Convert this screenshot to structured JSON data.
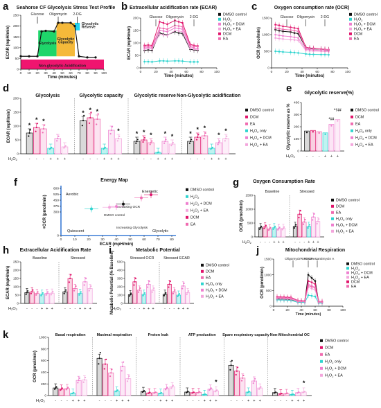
{
  "colors": {
    "dmso": "#111111",
    "dcm": "#e0156b",
    "ea": "#f06bb0",
    "h2o2": "#2ed4cf",
    "h2o2_dcm": "#ee7fcf",
    "h2o2_ea": "#f3a6dc",
    "glycolysis_box": "#1ed66a",
    "capacity_box": "#f5b93a",
    "reserve_box": "#21d4f0",
    "nonglyc_box": "#f0156f"
  },
  "treatments": [
    "DMSO control",
    "DCM",
    "EA",
    "H2O2 only",
    "H2O2 + DCM",
    "H2O2 + EA"
  ],
  "h2o2_row": {
    "label": "H2O2",
    "signs": [
      "-",
      "-",
      "-",
      "+",
      "+",
      "+"
    ]
  },
  "panel_a": {
    "letter": "a",
    "title": "Seahorse CF Glycolysis Stress Test Profile",
    "xlabel": "Time (minutes)",
    "ylabel": "ECAR (mpH/min)",
    "injections": [
      "Glucose",
      "Oligomycin",
      "2-DG"
    ],
    "box_labels": {
      "glycolysis": "Glycolysis",
      "capacity": "Glycolytic Capacity",
      "reserve": "Glycolytic Reserve",
      "nonglyc": "Non-glycolytic Acidification"
    },
    "xticks": [
      "0",
      "10",
      "20",
      "30",
      "40",
      "50",
      "60",
      "70",
      "80",
      "90",
      "100"
    ],
    "yticks": [
      "0",
      "50",
      "100",
      "150",
      "200",
      "250"
    ],
    "chart_data": {
      "type": "line",
      "x": [
        0,
        10,
        20,
        25,
        30,
        40,
        45,
        50,
        60,
        65,
        70,
        80,
        90
      ],
      "y": [
        60,
        60,
        60,
        175,
        178,
        175,
        215,
        215,
        215,
        200,
        60,
        55,
        55
      ],
      "xlim": [
        0,
        100
      ],
      "ylim": [
        0,
        250
      ]
    }
  },
  "panel_b": {
    "letter": "b",
    "title": "Extracellular acidification rate (ECAR)",
    "xlabel": "Time (minutes)",
    "ylabel": "ECAR (mpH/min)",
    "injections": [
      "Glucose",
      "Oligomycin",
      "2-DG"
    ],
    "xticks": [
      "0",
      "20",
      "40",
      "60",
      "80",
      "100"
    ],
    "yticks": [
      "0",
      "50",
      "100",
      "150",
      "200"
    ],
    "legend": [
      "DMSO control",
      "H2O2",
      "H2O2 + DCM",
      "H2O2 + EA",
      "DCM",
      "EA"
    ],
    "chart_data": {
      "type": "line",
      "x": [
        5,
        10,
        15,
        25,
        30,
        35,
        45,
        50,
        55,
        65,
        70,
        75
      ],
      "xlim": [
        0,
        100
      ],
      "ylim": [
        0,
        200
      ],
      "series": [
        {
          "name": "DMSO control",
          "values": [
            70,
            72,
            70,
            140,
            135,
            132,
            145,
            140,
            138,
            75,
            72,
            70
          ]
        },
        {
          "name": "H2O2",
          "values": [
            25,
            25,
            24,
            28,
            28,
            27,
            28,
            28,
            27,
            24,
            24,
            24
          ]
        },
        {
          "name": "H2O2 + DCM",
          "values": [
            80,
            82,
            80,
            150,
            148,
            145,
            160,
            158,
            155,
            85,
            80,
            78
          ]
        },
        {
          "name": "H2O2 + EA",
          "values": [
            75,
            78,
            76,
            135,
            132,
            130,
            150,
            148,
            145,
            78,
            75,
            74
          ]
        },
        {
          "name": "DCM",
          "values": [
            90,
            92,
            90,
            185,
            180,
            175,
            190,
            185,
            180,
            95,
            90,
            88
          ]
        },
        {
          "name": "EA",
          "values": [
            85,
            86,
            84,
            160,
            158,
            155,
            170,
            168,
            165,
            90,
            86,
            85
          ]
        }
      ]
    }
  },
  "panel_c": {
    "letter": "c",
    "title": "Oxygen consumption rate (OCR)",
    "xlabel": "Time (minutes)",
    "ylabel": "OCR (pmol/min)",
    "injections": [
      "Glucose",
      "Oligomycin",
      "2-DG"
    ],
    "xticks": [
      "0",
      "20",
      "40",
      "60",
      "80",
      "100"
    ],
    "yticks": [
      "0",
      "500",
      "1000",
      "1500"
    ],
    "legend": [
      "DMSO control",
      "H2O2",
      "H2O2 + DCM",
      "H2O2 + EA",
      "DCM",
      "EA"
    ],
    "chart_data": {
      "type": "line",
      "x": [
        5,
        10,
        15,
        25,
        30,
        35,
        45,
        50,
        55,
        65,
        70,
        75
      ],
      "xlim": [
        0,
        100
      ],
      "ylim": [
        0,
        1500
      ],
      "series": [
        {
          "name": "DMSO control",
          "values": [
            1150,
            1120,
            1100,
            1080,
            1050,
            1030,
            600,
            580,
            570,
            560,
            550,
            540
          ]
        },
        {
          "name": "H2O2",
          "values": [
            500,
            490,
            480,
            470,
            460,
            450,
            420,
            410,
            405,
            400,
            400,
            395
          ]
        },
        {
          "name": "H2O2 + DCM",
          "values": [
            1000,
            980,
            960,
            940,
            920,
            900,
            560,
            550,
            540,
            520,
            515,
            510
          ]
        },
        {
          "name": "H2O2 + EA",
          "values": [
            900,
            880,
            870,
            850,
            840,
            830,
            520,
            510,
            505,
            500,
            495,
            490
          ]
        },
        {
          "name": "DCM",
          "values": [
            1300,
            1280,
            1250,
            1220,
            1200,
            1180,
            620,
            600,
            590,
            570,
            560,
            550
          ]
        },
        {
          "name": "EA",
          "values": [
            1200,
            1180,
            1160,
            1140,
            1120,
            1100,
            600,
            590,
            580,
            560,
            555,
            550
          ]
        }
      ]
    }
  },
  "panel_d": {
    "letter": "d",
    "ylabel": "ECAR (mpH/min)",
    "yticks": [
      "0",
      "50",
      "100",
      "150",
      "200"
    ],
    "groups": [
      "Glycolysis",
      "Glycolytic capacity",
      "Glycolytic reserve",
      "Non-Glycolytic acidification"
    ],
    "stars": [
      "*",
      "*",
      "*",
      "*",
      "*",
      "*",
      "*",
      "*",
      "*",
      "*",
      "*",
      "*",
      "*",
      "*",
      "*",
      "*",
      "*"
    ],
    "chart_data": {
      "type": "bar",
      "categories": [
        "Glycolysis",
        "Glycolytic capacity",
        "Glycolytic reserve",
        "Non-Glycolytic acidification"
      ],
      "ylim": [
        0,
        200
      ],
      "series": [
        {
          "name": "DMSO control",
          "values": [
            75,
            120,
            45,
            45
          ]
        },
        {
          "name": "DCM",
          "values": [
            95,
            130,
            50,
            60
          ]
        },
        {
          "name": "EA",
          "values": [
            90,
            125,
            40,
            65
          ]
        },
        {
          "name": "H2O2 only",
          "values": [
            20,
            20,
            5,
            20
          ]
        },
        {
          "name": "H2O2 + DCM",
          "values": [
            55,
            85,
            45,
            40
          ]
        },
        {
          "name": "H2O2 + EA",
          "values": [
            25,
            55,
            35,
            55
          ]
        }
      ]
    }
  },
  "panel_e": {
    "letter": "e",
    "title": "Glycolytic reserve(%)",
    "ylabel": "Glycolytic reserve as %",
    "yticks": [
      "0",
      "100",
      "200",
      "300",
      "400"
    ],
    "annotations": [
      "*‡#",
      "*†‡#"
    ],
    "chart_data": {
      "type": "bar",
      "categories": [
        "DMSO control",
        "DCM",
        "EA",
        "H2O2 only",
        "H2O2 + DCM",
        "H2O2 + EA"
      ],
      "values": [
        165,
        170,
        160,
        150,
        220,
        260
      ],
      "ylim": [
        0,
        400
      ]
    }
  },
  "panel_f": {
    "letter": "f",
    "title": "Energy Map",
    "xlabel": "ECAR (mpH/min)",
    "ylabel": "OCR (pmol/min)",
    "quadrants": [
      "Aerobic",
      "Energetic",
      "Quiescent",
      "Glycolytic"
    ],
    "small_labels": [
      "DMSO control",
      "Increasing OCR",
      "Increasing Glycolysis"
    ],
    "xticks": [
      "0",
      "10",
      "20",
      "30",
      "40",
      "50",
      "60",
      "70",
      "80"
    ],
    "yticks": [
      "0",
      "300",
      "375",
      "450",
      "525",
      "600"
    ],
    "chart_data": {
      "type": "scatter",
      "xlim": [
        0,
        80
      ],
      "ylim": [
        0,
        600
      ],
      "series": [
        {
          "name": "DMSO control",
          "values": [
            [
              45,
              400
            ]
          ]
        },
        {
          "name": "H2O2",
          "values": [
            [
              22,
              340
            ]
          ]
        },
        {
          "name": "H2O2 + DCM",
          "values": [
            [
              40,
              370
            ]
          ]
        },
        {
          "name": "H2O2 + EA",
          "values": [
            [
              35,
              360
            ]
          ]
        },
        {
          "name": "DCM",
          "values": [
            [
              65,
              520
            ]
          ]
        },
        {
          "name": "EA",
          "values": [
            [
              58,
              480
            ]
          ]
        }
      ]
    }
  },
  "panel_g": {
    "letter": "g",
    "title": "Oxygen Consumption Rate",
    "groups": [
      "Baseline",
      "Stressed"
    ],
    "ylabel": "OCR (pmol/min)",
    "yticks": [
      "0",
      "500",
      "1000",
      "1500"
    ],
    "chart_data": {
      "type": "bar",
      "categories": [
        "Baseline",
        "Stressed"
      ],
      "ylim": [
        0,
        1500
      ],
      "series": [
        {
          "name": "DMSO control",
          "values": [
            330,
            380
          ]
        },
        {
          "name": "DCM",
          "values": [
            360,
            820
          ]
        },
        {
          "name": "EA",
          "values": [
            290,
            540
          ]
        },
        {
          "name": "H2O2 only",
          "values": [
            330,
            380
          ]
        },
        {
          "name": "H2O2 + DCM",
          "values": [
            300,
            720
          ]
        },
        {
          "name": "H2O2 + EA",
          "values": [
            310,
            560
          ]
        }
      ]
    }
  },
  "panel_h": {
    "letter": "h",
    "title": "Extracellular Acidification Rate",
    "groups": [
      "Baseline",
      "Stressed"
    ],
    "ylabel": "ECAR (mpH/min)",
    "yticks": [
      "0",
      "50",
      "100",
      "150",
      "200",
      "250"
    ],
    "chart_data": {
      "type": "bar",
      "categories": [
        "Baseline",
        "Stressed"
      ],
      "ylim": [
        0,
        250
      ],
      "series": [
        {
          "name": "DMSO control",
          "values": [
            65,
            70
          ]
        },
        {
          "name": "DCM",
          "values": [
            70,
            150
          ]
        },
        {
          "name": "EA",
          "values": [
            60,
            90
          ]
        },
        {
          "name": "H2O2 only",
          "values": [
            55,
            60
          ]
        },
        {
          "name": "H2O2 + DCM",
          "values": [
            60,
            130
          ]
        },
        {
          "name": "H2O2 + EA",
          "values": [
            62,
            90
          ]
        }
      ]
    }
  },
  "panel_i": {
    "letter": "i",
    "title": "Metabolic Potential",
    "groups": [
      "Stressed OCR",
      "Stressed ECAR"
    ],
    "ylabel": "Metabolic Potential (% Baseline)",
    "yticks": [
      "0",
      "100",
      "200",
      "300",
      "400",
      "500"
    ],
    "chart_data": {
      "type": "bar",
      "categories": [
        "Stressed OCR",
        "Stressed ECAR"
      ],
      "ylim": [
        0,
        500
      ],
      "series": [
        {
          "name": "DMSO control",
          "values": [
            105,
            110
          ]
        },
        {
          "name": "DCM",
          "values": [
            260,
            230
          ]
        },
        {
          "name": "EA",
          "values": [
            160,
            140
          ]
        },
        {
          "name": "H2O2 only",
          "values": [
            110,
            100
          ]
        },
        {
          "name": "H2O2 + DCM",
          "values": [
            230,
            210
          ]
        },
        {
          "name": "H2O2 + EA",
          "values": [
            160,
            130
          ]
        }
      ]
    }
  },
  "panel_j": {
    "letter": "j",
    "title": "Mitochondrial Respiration",
    "xlabel": "Time (minutes)",
    "ylabel": "OCR (pmol/min)",
    "injections": [
      "Oligomycin",
      "FCCP",
      "Rotenone&antimycin A"
    ],
    "xticks": [
      "0",
      "20",
      "40",
      "60",
      "80",
      "100"
    ],
    "yticks": [
      "0",
      "500",
      "1000",
      "1500"
    ],
    "legend": [
      "DMSO control",
      "H2O2",
      "H2O2 + DCM",
      "H2O2 + EA",
      "DCM",
      "EA"
    ],
    "chart_data": {
      "type": "line",
      "x": [
        5,
        10,
        15,
        20,
        25,
        35,
        40,
        45,
        50,
        55,
        60,
        65,
        70
      ],
      "xlim": [
        0,
        100
      ],
      "ylim": [
        0,
        1500
      ],
      "series": [
        {
          "name": "DMSO control",
          "values": [
            230,
            230,
            225,
            220,
            215,
            150,
            145,
            140,
            1000,
            900,
            800,
            130,
            120
          ]
        },
        {
          "name": "H2O2",
          "values": [
            200,
            195,
            195,
            190,
            185,
            120,
            120,
            115,
            350,
            330,
            310,
            100,
            100
          ]
        },
        {
          "name": "H2O2 + DCM",
          "values": [
            260,
            255,
            250,
            245,
            240,
            160,
            155,
            150,
            700,
            650,
            600,
            140,
            135
          ]
        },
        {
          "name": "H2O2 + EA",
          "values": [
            250,
            245,
            240,
            235,
            230,
            150,
            148,
            145,
            600,
            560,
            520,
            130,
            125
          ]
        },
        {
          "name": "DCM",
          "values": [
            300,
            295,
            290,
            285,
            280,
            180,
            175,
            170,
            800,
            760,
            700,
            150,
            150
          ]
        },
        {
          "name": "EA",
          "values": [
            280,
            275,
            270,
            265,
            260,
            170,
            165,
            160,
            650,
            620,
            580,
            145,
            140
          ]
        }
      ]
    }
  },
  "panel_k": {
    "letter": "k",
    "ylabel": "OCR (pmol/min)",
    "yticks": [
      "0",
      "200",
      "400",
      "600",
      "800",
      "1000"
    ],
    "groups": [
      "Basal respiration",
      "Maximal respiration",
      "Proton leak",
      "ATP production",
      "Spare respiratory capacity",
      "Non-Mitochondrial OC"
    ],
    "stars": [
      "*",
      "*"
    ],
    "chart_data": {
      "type": "bar",
      "categories": [
        "Basal respiration",
        "Maximal respiration",
        "Proton leak",
        "ATP production",
        "Spare respiratory capacity",
        "Non-Mitochondrial OC"
      ],
      "ylim": [
        0,
        1000
      ],
      "series": [
        {
          "name": "DMSO control",
          "values": [
            130,
            640,
            70,
            60,
            520,
            50
          ]
        },
        {
          "name": "DCM",
          "values": [
            110,
            540,
            45,
            50,
            420,
            30
          ]
        },
        {
          "name": "EA",
          "values": [
            120,
            390,
            50,
            55,
            300,
            35
          ]
        },
        {
          "name": "H2O2 only",
          "values": [
            40,
            80,
            40,
            20,
            60,
            20
          ]
        },
        {
          "name": "H2O2 + DCM",
          "values": [
            260,
            500,
            120,
            110,
            250,
            50
          ]
        },
        {
          "name": "H2O2 + EA",
          "values": [
            270,
            290,
            150,
            80,
            130,
            60
          ]
        }
      ]
    }
  }
}
